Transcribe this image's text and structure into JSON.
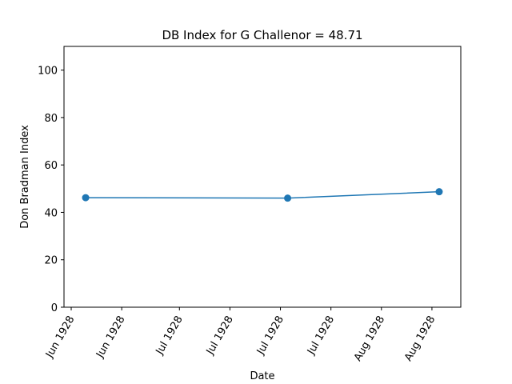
{
  "chart_data": {
    "type": "line",
    "title": "DB Index for G Challenor = 48.71",
    "xlabel": "Date",
    "ylabel": "Don Bradman Index",
    "x_tick_labels": [
      "Jun 1928",
      "Jun 1928",
      "Jul 1928",
      "Jul 1928",
      "Jul 1928",
      "Jul 1928",
      "Aug 1928",
      "Aug 1928"
    ],
    "x_ticks": [
      "1928-06-01",
      "1928-06-15",
      "1928-07-01",
      "1928-07-15",
      "1928-07-29",
      "1928-08-12",
      "1928-08-26",
      "1928-09-09"
    ],
    "x_range": [
      "1928-05-30",
      "1928-09-17"
    ],
    "y_ticks": [
      0,
      20,
      40,
      60,
      80,
      100
    ],
    "ylim": [
      0,
      110
    ],
    "series": [
      {
        "color": "#1f77b4",
        "marker": "circle",
        "x": [
          "1928-06-05",
          "1928-07-31",
          "1928-09-11"
        ],
        "values": [
          46.2,
          46.0,
          48.71
        ]
      }
    ],
    "grid": false,
    "legend": "none"
  }
}
